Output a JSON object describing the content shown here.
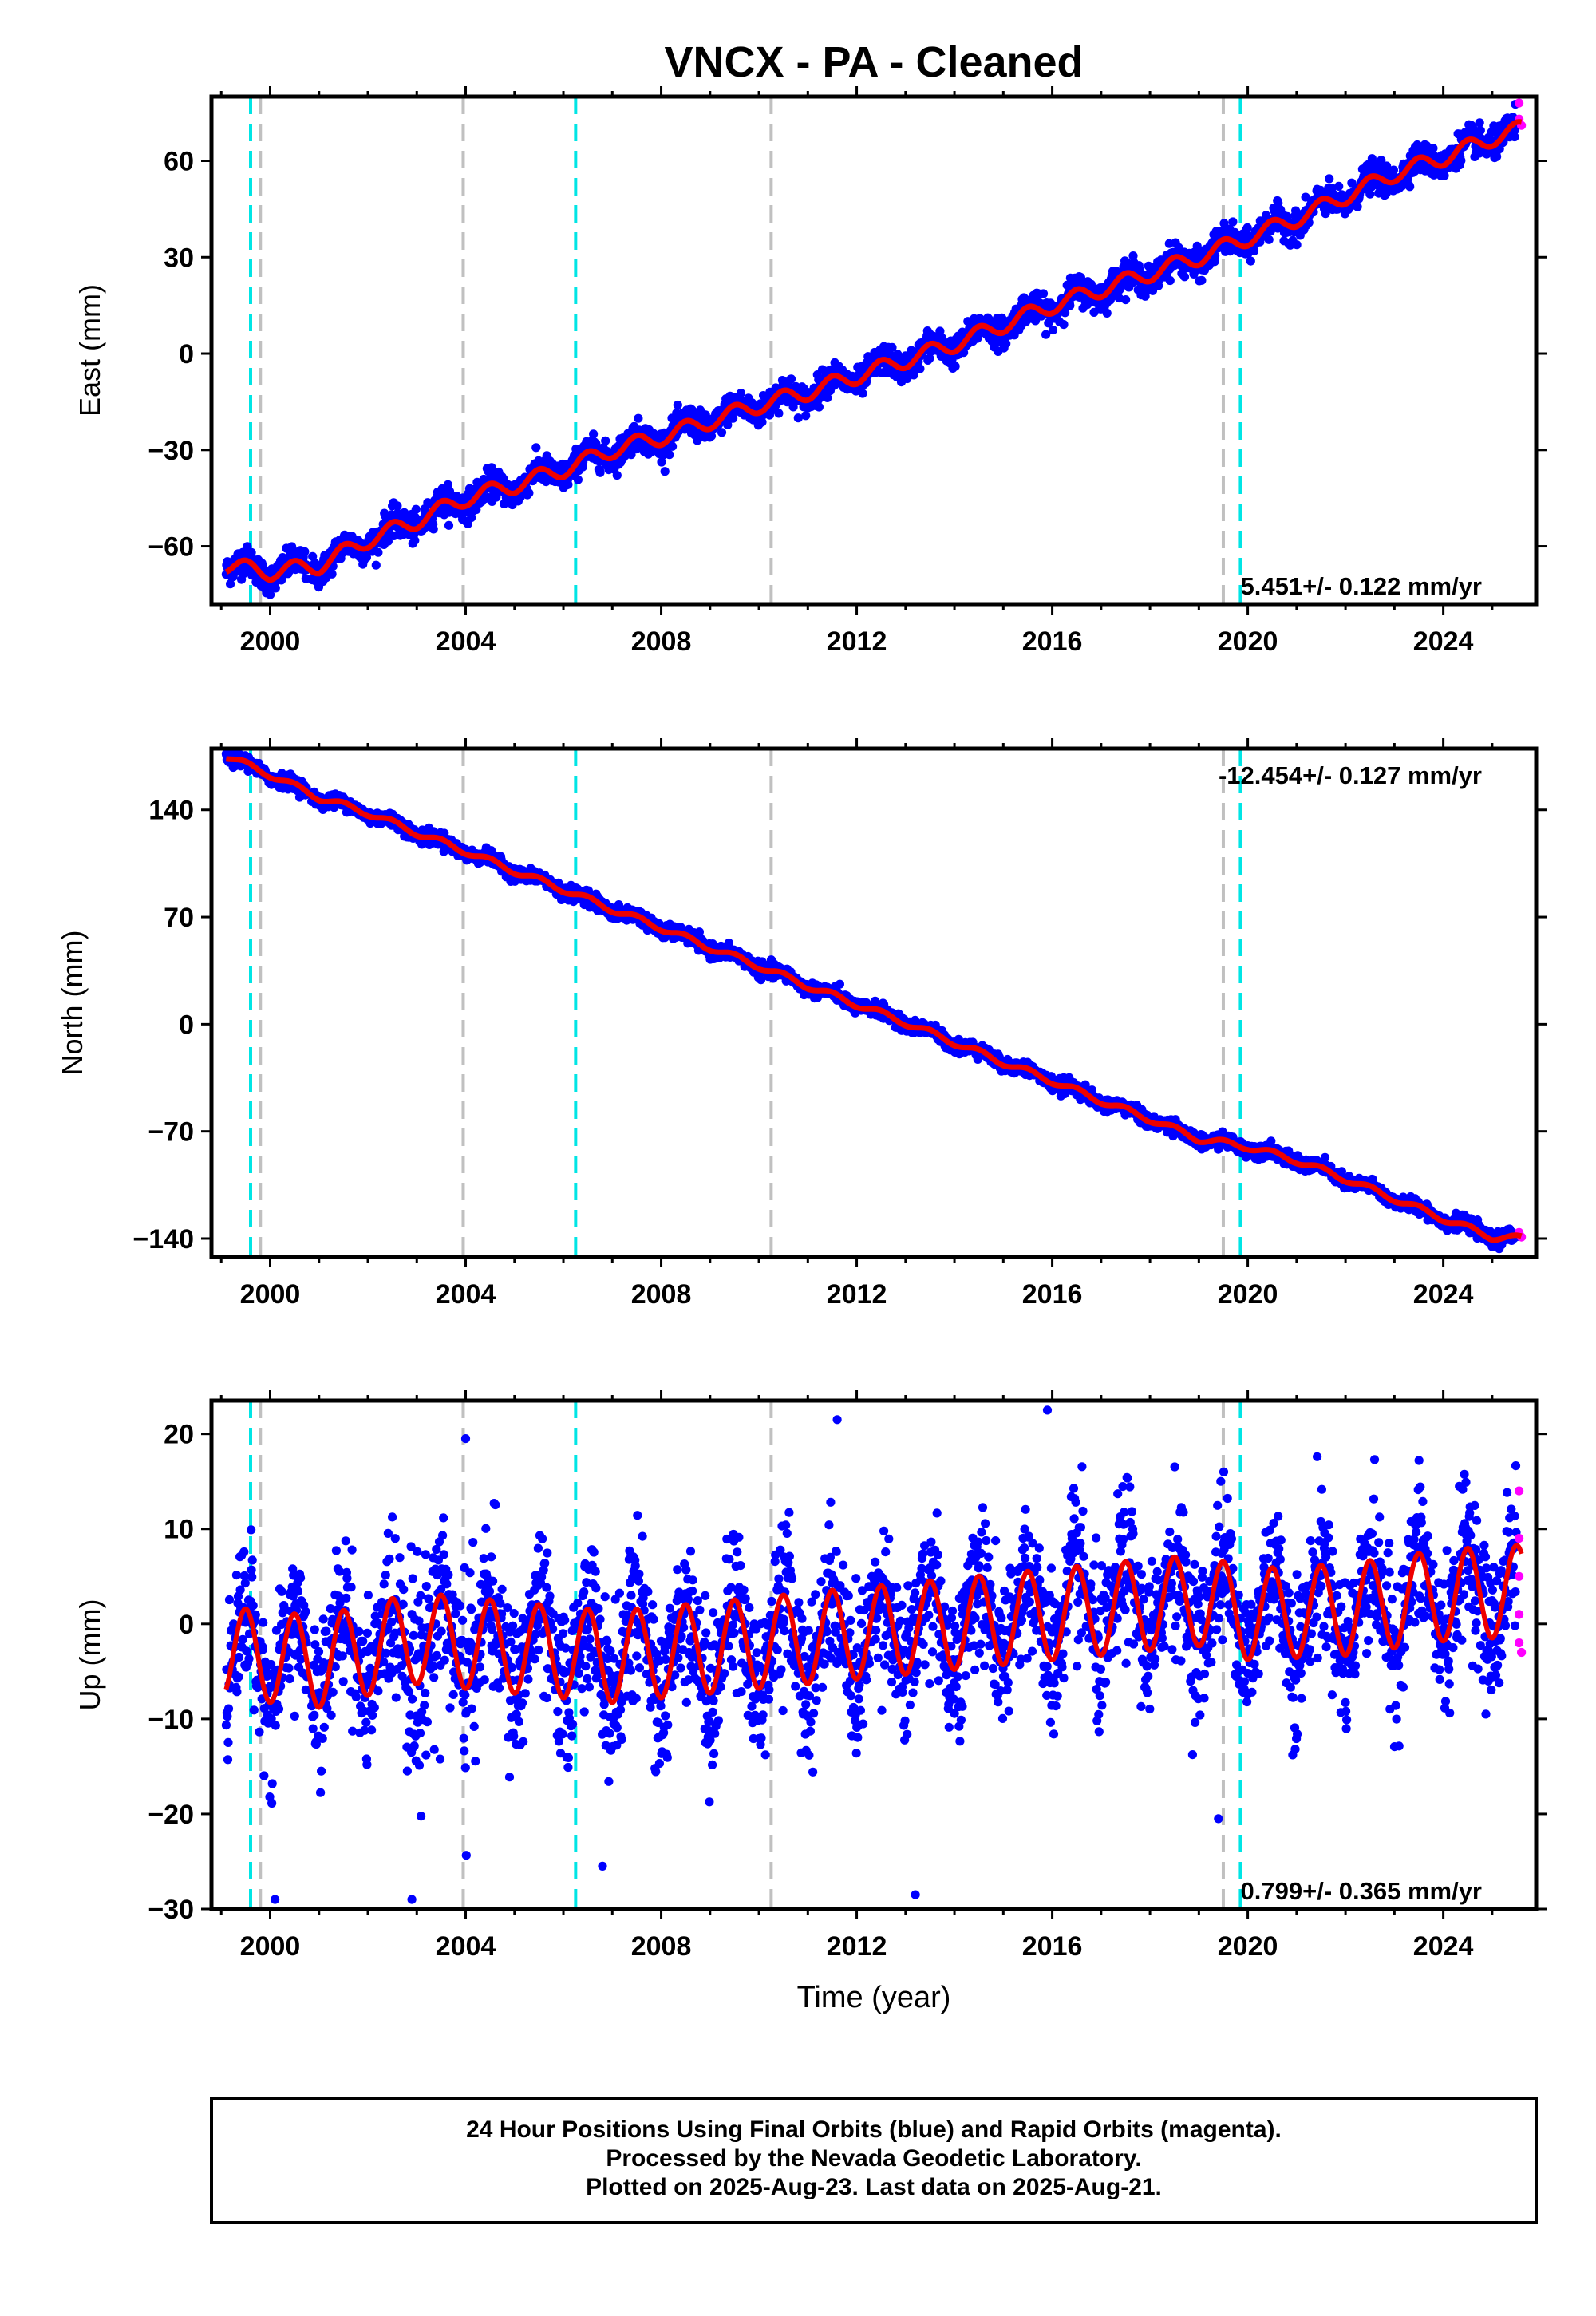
{
  "chart_data": {
    "type": "scatter",
    "title": "VNCX  - PA - Cleaned",
    "xlabel": "Time (year)",
    "xlim": [
      1998.8,
      2025.9
    ],
    "xticks": [
      2000,
      2004,
      2008,
      2012,
      2016,
      2020,
      2024
    ],
    "series_colors": {
      "final_orbits": "#0000ff",
      "rapid_orbits": "#ff00ff",
      "model_fit": "#ee0000"
    },
    "event_lines": {
      "cyan": [
        1999.6,
        2006.25,
        2019.85
      ],
      "gray": [
        1999.8,
        2003.95,
        2010.25,
        2019.5
      ],
      "cyan_color": "#00e5e5",
      "gray_color": "#c0c0c0"
    },
    "panels": [
      {
        "name": "east",
        "ylabel": "East (mm)",
        "ylim": [
          -78,
          80
        ],
        "yticks": [
          -60,
          -30,
          0,
          30,
          60
        ],
        "rate_label": "5.451+/- 0.122 mm/yr",
        "rate_position": "bottom-right",
        "trend": {
          "value_at_1999": -67,
          "rate_mm_per_yr": 5.451
        },
        "fit_points": [
          [
            1999.1,
            -66
          ],
          [
            2000.0,
            -68
          ],
          [
            2001.0,
            -66
          ],
          [
            2002.0,
            -58
          ],
          [
            2003.0,
            -52
          ],
          [
            2004.0,
            -45
          ],
          [
            2005.0,
            -41
          ],
          [
            2006.0,
            -36
          ],
          [
            2007.0,
            -30
          ],
          [
            2008.0,
            -26
          ],
          [
            2009.0,
            -21
          ],
          [
            2010.0,
            -16
          ],
          [
            2011.0,
            -12
          ],
          [
            2012.0,
            -7
          ],
          [
            2013.0,
            -2
          ],
          [
            2014.0,
            3
          ],
          [
            2015.0,
            9
          ],
          [
            2016.0,
            15
          ],
          [
            2017.0,
            20
          ],
          [
            2018.0,
            25
          ],
          [
            2019.0,
            30
          ],
          [
            2020.0,
            36
          ],
          [
            2021.0,
            42
          ],
          [
            2022.0,
            49
          ],
          [
            2023.0,
            56
          ],
          [
            2024.0,
            61
          ],
          [
            2025.0,
            67
          ],
          [
            2025.6,
            70
          ]
        ],
        "seasonal_amp": 2.5,
        "noise": 2.2,
        "outliers": [
          [
            2025.55,
            78
          ],
          [
            2025.55,
            73
          ],
          [
            2025.6,
            71
          ]
        ]
      },
      {
        "name": "north",
        "ylabel": "North (mm)",
        "ylim": [
          -152,
          180
        ],
        "yticks": [
          -140,
          -70,
          0,
          70,
          140
        ],
        "rate_label": "-12.454+/- 0.127 mm/yr",
        "rate_position": "top-right",
        "fit_points": [
          [
            1999.1,
            175
          ],
          [
            2000.0,
            163
          ],
          [
            2001.0,
            148
          ],
          [
            2002.0,
            138
          ],
          [
            2003.0,
            125
          ],
          [
            2004.0,
            113
          ],
          [
            2005.0,
            100
          ],
          [
            2006.0,
            88
          ],
          [
            2007.0,
            75
          ],
          [
            2008.0,
            63
          ],
          [
            2009.0,
            50
          ],
          [
            2010.0,
            38
          ],
          [
            2011.0,
            25
          ],
          [
            2012.0,
            13
          ],
          [
            2013.0,
            1
          ],
          [
            2014.0,
            -12
          ],
          [
            2015.0,
            -25
          ],
          [
            2016.0,
            -37
          ],
          [
            2017.0,
            -50
          ],
          [
            2018.0,
            -62
          ],
          [
            2019.0,
            -75
          ],
          [
            2020.0,
            -80
          ],
          [
            2021.0,
            -89
          ],
          [
            2022.0,
            -101
          ],
          [
            2023.0,
            -114
          ],
          [
            2024.0,
            -127
          ],
          [
            2025.0,
            -139
          ],
          [
            2025.6,
            -140
          ]
        ],
        "seasonal_amp": 2.0,
        "noise": 2.2,
        "outliers": [
          [
            2025.55,
            -136
          ],
          [
            2025.6,
            -139
          ]
        ]
      },
      {
        "name": "up",
        "ylabel": "Up (mm)",
        "ylim": [
          -30,
          23.5
        ],
        "yticks": [
          -30,
          -20,
          -10,
          0,
          10,
          20
        ],
        "rate_label": "0.799+/- 0.365 mm/yr",
        "rate_position": "bottom-right",
        "fit_points": [
          [
            1999.1,
            -3
          ],
          [
            2001.0,
            -4
          ],
          [
            2003.0,
            -1.5
          ],
          [
            2005.0,
            -2.5
          ],
          [
            2007.0,
            -3.5
          ],
          [
            2009.0,
            -2.5
          ],
          [
            2011.0,
            -1.5
          ],
          [
            2013.0,
            -0.5
          ],
          [
            2015.0,
            0.5
          ],
          [
            2017.0,
            1.5
          ],
          [
            2019.0,
            2.5
          ],
          [
            2020.0,
            1
          ],
          [
            2022.0,
            1.5
          ],
          [
            2024.0,
            3
          ],
          [
            2025.6,
            3.5
          ]
        ],
        "seasonal_amp": 4.8,
        "noise": 3.2,
        "outliers": [
          [
            2000.1,
            -29
          ],
          [
            2002.9,
            -29
          ],
          [
            2006.8,
            -25.5
          ],
          [
            2013.2,
            -28.5
          ],
          [
            2011.6,
            21.5
          ],
          [
            2015.9,
            22.5
          ],
          [
            2004.0,
            19.5
          ],
          [
            2019.4,
            -20.5
          ],
          [
            2025.55,
            14
          ],
          [
            2025.55,
            9
          ],
          [
            2025.55,
            5
          ],
          [
            2025.55,
            1
          ],
          [
            2025.55,
            -2
          ],
          [
            2025.6,
            -3
          ]
        ]
      }
    ]
  },
  "caption": {
    "lines": [
      "24 Hour Positions Using Final Orbits (blue) and Rapid Orbits (magenta).",
      "Processed by the Nevada Geodetic Laboratory.",
      "Plotted on 2025-Aug-23. Last data on 2025-Aug-21."
    ]
  }
}
